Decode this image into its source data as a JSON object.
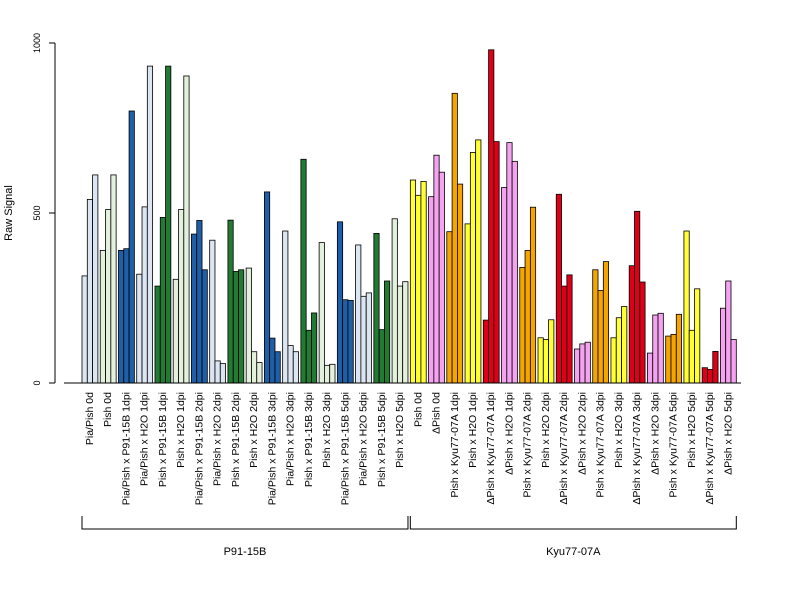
{
  "chart_data": {
    "type": "bar",
    "title": "",
    "xlabel": "",
    "ylabel": "Raw Signal",
    "ylim": [
      0,
      1000
    ],
    "yticks": [
      0,
      500,
      1000
    ],
    "grid": false,
    "categories": [
      "Pia/Pish 0d",
      "Pish 0d",
      "Pia/Pish x P91-15B 1dpi",
      "Pia/Pish x H2O 1dpi",
      "Pish x P91-15B 1dpi",
      "Pish x H2O 1dpi",
      "Pia/Pish x P91-15B 2dpi",
      "Pia/Pish x H2O 2dpi",
      "Pish x P91-15B 2dpi",
      "Pish x H2O 2dpi",
      "Pia/Pish x P91-15B 3dpi",
      "Pia/Pish x H2O 3dpi",
      "Pish x P91-15B 3dpi",
      "Pish x H2O 3dpi",
      "Pia/Pish x P91-15B 5dpi",
      "Pia/Pish x H2O 5dpi",
      "Pish x P91-15B 5dpi",
      "Pish x H2O 5dpi",
      "Pish 0d",
      "ΔPish 0d",
      "Pish x Kyu77-07A 1dpi",
      "Pish x H2O 1dpi",
      "ΔPish x Kyu77-07A 1dpi",
      "ΔPish x H2O 1dpi",
      "Pish x Kyu77-07A 2dpi",
      "Pish x H2O 2dpi",
      "ΔPish x Kyu77-07A 2dpi",
      "ΔPish x H2O 2dpi",
      "Pish x Kyu77-07A 3dpi",
      "Pish x H2O 3dpi",
      "ΔPish x Kyu77-07A 3dpi",
      "ΔPish x H2O 3dpi",
      "Pish x Kyu77-07A 5dpi",
      "Pish x H2O 5dpi",
      "ΔPish x Kyu77-07A 5dpi",
      "ΔPish x H2O 5dpi"
    ],
    "group_colors": [
      "#dce6f2",
      "#e3f0dc",
      "#1f5fa8",
      "#dce6f2",
      "#237a32",
      "#e3f0dc",
      "#1f5fa8",
      "#dce6f2",
      "#237a32",
      "#e3f0dc",
      "#1f5fa8",
      "#dce6f2",
      "#237a32",
      "#e3f0dc",
      "#1f5fa8",
      "#dce6f2",
      "#237a32",
      "#e3f0dc",
      "#ffff33",
      "#f5a3f0",
      "#f5a500",
      "#ffff33",
      "#dd0018",
      "#f5a3f0",
      "#f5a500",
      "#ffff33",
      "#dd0018",
      "#f5a3f0",
      "#f5a500",
      "#ffff33",
      "#dd0018",
      "#f5a3f0",
      "#f5a500",
      "#ffff33",
      "#dd0018",
      "#f5a3f0"
    ],
    "values": [
      [
        315,
        540,
        612
      ],
      [
        390,
        510,
        612
      ],
      [
        390,
        395,
        800
      ],
      [
        320,
        518,
        932
      ],
      [
        285,
        487,
        932
      ],
      [
        305,
        510,
        903
      ],
      [
        438,
        478,
        333
      ],
      [
        420,
        65,
        57
      ],
      [
        479,
        328,
        333
      ],
      [
        338,
        92,
        60
      ],
      [
        562,
        132,
        92
      ],
      [
        447,
        110,
        92
      ],
      [
        658,
        155,
        206
      ],
      [
        413,
        52,
        55
      ],
      [
        474,
        245,
        243
      ],
      [
        406,
        255,
        265
      ],
      [
        440,
        157,
        300
      ],
      [
        483,
        285,
        298
      ],
      [
        597,
        552,
        593
      ],
      [
        548,
        670,
        620
      ],
      [
        445,
        852,
        585
      ],
      [
        468,
        678,
        715
      ],
      [
        185,
        980,
        710
      ],
      [
        575,
        707,
        652
      ],
      [
        340,
        390,
        517
      ],
      [
        133,
        128,
        186
      ],
      [
        555,
        285,
        318
      ],
      [
        100,
        115,
        120
      ],
      [
        333,
        272,
        357
      ],
      [
        133,
        192,
        225
      ],
      [
        345,
        505,
        297
      ],
      [
        88,
        200,
        205
      ],
      [
        138,
        143,
        202
      ],
      [
        447,
        155,
        277
      ],
      [
        45,
        40,
        93
      ],
      [
        220,
        300,
        128
      ]
    ],
    "groups": [
      {
        "label": "P91-15B",
        "from": 0,
        "to": 17
      },
      {
        "label": "Kyu77-07A",
        "from": 18,
        "to": 35
      }
    ]
  }
}
